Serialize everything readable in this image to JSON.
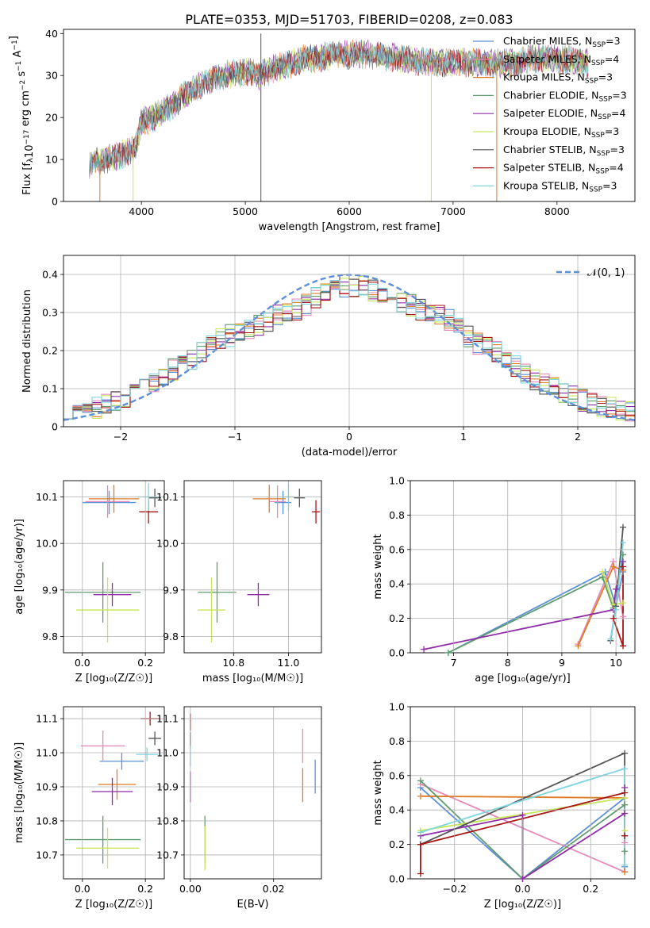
{
  "figure_title": "PLATE=0353, MJD=51703, FIBERID=0208, z=0.083",
  "colors": {
    "Chabrier MILES": "#5b8fd8",
    "Salpeter MILES": "#e68ab8",
    "Kroupa MILES": "#e07b28",
    "Chabrier ELODIE": "#5f9b6b",
    "Salpeter ELODIE": "#8e2ca8",
    "Kroupa ELODIE": "#c8e65a",
    "Chabrier STELIB": "#555555",
    "Salpeter STELIB": "#a81414",
    "Kroupa STELIB": "#7ed6e0",
    "normal_curve": "#5b8fd8",
    "grid": "#b0b0b0"
  },
  "chart_data": [
    {
      "id": "spectrum",
      "type": "line",
      "xlabel": "wavelength [Angstrom, rest frame]",
      "ylabel": "Flux [f_λ10^-17 erg cm^-2 s^-1 A^-1]",
      "xlim": [
        3250,
        8750
      ],
      "ylim": [
        0,
        41
      ],
      "xticks": [
        4000,
        5000,
        6000,
        7000,
        8000
      ],
      "yticks": [
        0,
        10,
        20,
        30,
        40
      ],
      "grid": false,
      "legend_position": "right",
      "legend": [
        {
          "name": "Chabrier MILES",
          "label": "Chabrier MILES, N",
          "sub": "SSP",
          "suffix": "=3"
        },
        {
          "name": "Salpeter MILES",
          "label": "Salpeter MILES, N",
          "sub": "SSP",
          "suffix": "=4"
        },
        {
          "name": "Kroupa MILES",
          "label": "Kroupa MILES, N",
          "sub": "SSP",
          "suffix": "=3"
        },
        {
          "name": "Chabrier ELODIE",
          "label": "Chabrier ELODIE, N",
          "sub": "SSP",
          "suffix": "=3"
        },
        {
          "name": "Salpeter ELODIE",
          "label": "Salpeter ELODIE, N",
          "sub": "SSP",
          "suffix": "=4"
        },
        {
          "name": "Kroupa ELODIE",
          "label": "Kroupa ELODIE, N",
          "sub": "SSP",
          "suffix": "=3"
        },
        {
          "name": "Chabrier STELIB",
          "label": "Chabrier STELIB, N",
          "sub": "SSP",
          "suffix": "=3"
        },
        {
          "name": "Salpeter STELIB",
          "label": "Salpeter STELIB, N",
          "sub": "SSP",
          "suffix": "=4"
        },
        {
          "name": "Kroupa STELIB",
          "label": "Kroupa STELIB, N",
          "sub": "SSP",
          "suffix": "=3"
        }
      ],
      "continuum": [
        [
          3500,
          9
        ],
        [
          3800,
          11
        ],
        [
          3950,
          13
        ],
        [
          4000,
          19
        ],
        [
          4200,
          21
        ],
        [
          4400,
          25
        ],
        [
          4600,
          28
        ],
        [
          4800,
          30
        ],
        [
          5000,
          31
        ],
        [
          5150,
          30
        ],
        [
          5300,
          32
        ],
        [
          5600,
          34
        ],
        [
          5900,
          35
        ],
        [
          6200,
          35
        ],
        [
          6500,
          34
        ],
        [
          6800,
          33
        ],
        [
          7000,
          33
        ],
        [
          7300,
          33
        ],
        [
          7600,
          33
        ],
        [
          7800,
          34
        ],
        [
          8000,
          34
        ],
        [
          8300,
          33
        ]
      ],
      "spikes": [
        {
          "x": 3600,
          "y": 0,
          "series": "Kroupa MILES"
        },
        {
          "x": 3920,
          "y": 0,
          "series": "Kroupa ELODIE"
        },
        {
          "x": 5150,
          "y": 0,
          "series": "Chabrier STELIB"
        },
        {
          "x": 5150,
          "y": 40,
          "series": "Chabrier STELIB"
        },
        {
          "x": 6790,
          "y": 0,
          "series": "Kroupa ELODIE"
        },
        {
          "x": 7420,
          "y": 0,
          "series": "Kroupa MILES"
        }
      ]
    },
    {
      "id": "residuals",
      "type": "line",
      "xlabel": "(data-model)/error",
      "ylabel": "Normed distribution",
      "xlim": [
        -2.5,
        2.5
      ],
      "ylim": [
        0,
        0.45
      ],
      "xticks": [
        -2,
        -1,
        0,
        1,
        2
      ],
      "yticks": [
        0.0,
        0.1,
        0.2,
        0.3,
        0.4
      ],
      "grid": true,
      "legend_position": "top-right",
      "legend_label": "𝒩(0, 1)",
      "bin_width": 0.1,
      "normal_sigma": 1.0,
      "normal_mean": 0.0,
      "histogram_base": [
        0.05,
        0.04,
        0.05,
        0.05,
        0.06,
        0.07,
        0.08,
        0.09,
        0.1,
        0.11,
        0.13,
        0.15,
        0.16,
        0.18,
        0.2,
        0.21,
        0.23,
        0.24,
        0.25,
        0.26,
        0.27,
        0.28,
        0.29,
        0.3,
        0.31,
        0.32,
        0.34,
        0.36,
        0.37,
        0.37,
        0.37,
        0.37,
        0.36,
        0.35,
        0.34,
        0.33,
        0.32,
        0.31,
        0.3,
        0.29,
        0.28,
        0.26,
        0.24,
        0.22,
        0.21,
        0.2,
        0.18,
        0.16,
        0.14,
        0.12,
        0.11,
        0.1,
        0.09,
        0.08,
        0.07,
        0.06,
        0.05,
        0.05,
        0.04,
        0.04
      ]
    },
    {
      "id": "age_vs_Z",
      "type": "scatter",
      "xlabel": "Z [log₁₀(Z/Z☉)]",
      "ylabel": "age  [log₁₀(age/yr)]",
      "xlim": [
        -0.06,
        0.26
      ],
      "ylim": [
        9.765,
        10.135
      ],
      "xticks": [
        0.0,
        0.2
      ],
      "xticklabels": [
        "0.0",
        "0.2"
      ],
      "yticks": [
        9.8,
        9.9,
        10.0,
        10.1
      ],
      "yticklabels": [
        "9.8",
        "9.9",
        "10.0",
        "10.1"
      ],
      "grid": true,
      "points": [
        {
          "series": "Chabrier MILES",
          "x": 0.085,
          "y": 10.088,
          "xerr": 0.085,
          "yerr": 0.025
        },
        {
          "series": "Salpeter MILES",
          "x": 0.08,
          "y": 10.09,
          "xerr": 0.07,
          "yerr": 0.035
        },
        {
          "series": "Kroupa MILES",
          "x": 0.1,
          "y": 10.096,
          "xerr": 0.08,
          "yerr": 0.03
        },
        {
          "series": "Chabrier ELODIE",
          "x": 0.065,
          "y": 9.895,
          "xerr": 0.12,
          "yerr": 0.065
        },
        {
          "series": "Salpeter ELODIE",
          "x": 0.095,
          "y": 9.89,
          "xerr": 0.06,
          "yerr": 0.025
        },
        {
          "series": "Kroupa ELODIE",
          "x": 0.08,
          "y": 9.857,
          "xerr": 0.1,
          "yerr": 0.07
        },
        {
          "series": "Chabrier STELIB",
          "x": 0.23,
          "y": 10.098,
          "xerr": 0.02,
          "yerr": 0.02
        },
        {
          "series": "Salpeter STELIB",
          "x": 0.21,
          "y": 10.068,
          "xerr": 0.03,
          "yerr": 0.025
        },
        {
          "series": "Kroupa STELIB",
          "x": 0.21,
          "y": 10.1,
          "xerr": 0.035,
          "yerr": 0.03
        }
      ]
    },
    {
      "id": "age_vs_mass",
      "type": "scatter",
      "xlabel": "mass [log₁₀(M/M☉)]",
      "ylabel": "",
      "xlim": [
        10.62,
        11.12
      ],
      "ylim": [
        9.765,
        10.135
      ],
      "xticks": [
        10.8,
        11.0
      ],
      "xticklabels": [
        "10.8",
        "11.0"
      ],
      "yticks": [
        9.8,
        9.9,
        10.0,
        10.1
      ],
      "yticklabels": [
        "9.8",
        "9.9",
        "10.0",
        "10.1"
      ],
      "grid": true,
      "points": [
        {
          "series": "Chabrier MILES",
          "x": 10.98,
          "y": 10.088,
          "xerr": 0.03,
          "yerr": 0.025
        },
        {
          "series": "Salpeter MILES",
          "x": 10.96,
          "y": 10.09,
          "xerr": 0.03,
          "yerr": 0.035
        },
        {
          "series": "Kroupa MILES",
          "x": 10.93,
          "y": 10.096,
          "xerr": 0.06,
          "yerr": 0.03
        },
        {
          "series": "Chabrier ELODIE",
          "x": 10.74,
          "y": 9.895,
          "xerr": 0.07,
          "yerr": 0.065
        },
        {
          "series": "Salpeter ELODIE",
          "x": 10.89,
          "y": 9.89,
          "xerr": 0.04,
          "yerr": 0.025
        },
        {
          "series": "Kroupa ELODIE",
          "x": 10.72,
          "y": 9.857,
          "xerr": 0.05,
          "yerr": 0.07
        },
        {
          "series": "Chabrier STELIB",
          "x": 11.04,
          "y": 10.098,
          "xerr": 0.02,
          "yerr": 0.02
        },
        {
          "series": "Salpeter STELIB",
          "x": 11.1,
          "y": 10.068,
          "xerr": 0.015,
          "yerr": 0.025
        },
        {
          "series": "Kroupa STELIB",
          "x": 11.0,
          "y": 10.1,
          "xerr": 0.02,
          "yerr": 0.03
        }
      ]
    },
    {
      "id": "weight_vs_age",
      "type": "line",
      "xlabel": "age  [log₁₀(age/yr)]",
      "ylabel": "mass weight",
      "xlim": [
        6.2,
        10.35
      ],
      "ylim": [
        0,
        1.0
      ],
      "xticks": [
        7,
        8,
        9,
        10
      ],
      "xticklabels": [
        "7",
        "8",
        "9",
        "10"
      ],
      "yticks": [
        0.0,
        0.2,
        0.4,
        0.6,
        0.8,
        1.0
      ],
      "yticklabels": [
        "0.0",
        "0.2",
        "0.4",
        "0.6",
        "0.8",
        "1.0"
      ],
      "grid": true,
      "series": [
        {
          "name": "Chabrier MILES",
          "x": [
            6.9,
            9.8,
            10.0,
            10.13
          ],
          "y": [
            0.0,
            0.47,
            0.27,
            0.47
          ]
        },
        {
          "name": "Salpeter MILES",
          "x": [
            9.3,
            9.95,
            10.13
          ],
          "y": [
            0.05,
            0.53,
            0.21
          ]
        },
        {
          "name": "Kroupa MILES",
          "x": [
            9.3,
            9.95,
            10.13
          ],
          "y": [
            0.04,
            0.5,
            0.48
          ]
        },
        {
          "name": "Chabrier ELODIE",
          "x": [
            6.9,
            9.75,
            9.95,
            10.13
          ],
          "y": [
            0.0,
            0.44,
            0.26,
            0.57
          ]
        },
        {
          "name": "Salpeter ELODIE",
          "x": [
            6.45,
            9.95,
            10.0,
            10.13
          ],
          "y": [
            0.02,
            0.25,
            0.37,
            0.53
          ]
        },
        {
          "name": "Kroupa ELODIE",
          "x": [
            9.75,
            9.95,
            10.13
          ],
          "y": [
            0.47,
            0.28,
            0.29
          ]
        },
        {
          "name": "Chabrier STELIB",
          "x": [
            9.9,
            10.0,
            10.13
          ],
          "y": [
            0.07,
            0.27,
            0.73
          ]
        },
        {
          "name": "Salpeter STELIB",
          "x": [
            9.95,
            10.13,
            10.13
          ],
          "y": [
            0.2,
            0.04,
            0.5
          ]
        },
        {
          "name": "Kroupa STELIB",
          "x": [
            9.9,
            10.0,
            10.13
          ],
          "y": [
            0.08,
            0.25,
            0.64
          ]
        }
      ]
    },
    {
      "id": "mass_vs_Z",
      "type": "scatter",
      "xlabel": "Z [log₁₀(Z/Z☉)]",
      "ylabel": "mass [log₁₀(M/M☉)]",
      "xlim": [
        -0.06,
        0.26
      ],
      "ylim": [
        10.63,
        11.135
      ],
      "xticks": [
        0.0,
        0.2
      ],
      "xticklabels": [
        "0.0",
        "0.2"
      ],
      "yticks": [
        10.7,
        10.8,
        10.9,
        11.0,
        11.1
      ],
      "yticklabels": [
        "10.7",
        "10.8",
        "10.9",
        "11.0",
        "11.1"
      ],
      "grid": true,
      "points": [
        {
          "series": "Chabrier MILES",
          "x": 0.125,
          "y": 10.975,
          "xerr": 0.07,
          "yerr": 0.025
        },
        {
          "series": "Salpeter MILES",
          "x": 0.065,
          "y": 11.02,
          "xerr": 0.07,
          "yerr": 0.045
        },
        {
          "series": "Kroupa MILES",
          "x": 0.11,
          "y": 10.907,
          "xerr": 0.06,
          "yerr": 0.045
        },
        {
          "series": "Chabrier ELODIE",
          "x": 0.065,
          "y": 10.745,
          "xerr": 0.12,
          "yerr": 0.07
        },
        {
          "series": "Salpeter ELODIE",
          "x": 0.095,
          "y": 10.886,
          "xerr": 0.065,
          "yerr": 0.04
        },
        {
          "series": "Kroupa ELODIE",
          "x": 0.08,
          "y": 10.72,
          "xerr": 0.1,
          "yerr": 0.06
        },
        {
          "series": "Chabrier STELIB",
          "x": 0.23,
          "y": 11.042,
          "xerr": 0.02,
          "yerr": 0.02
        },
        {
          "series": "Salpeter STELIB",
          "x": 0.215,
          "y": 11.1,
          "xerr": 0.03,
          "yerr": 0.02
        },
        {
          "series": "Kroupa STELIB",
          "x": 0.205,
          "y": 10.995,
          "xerr": 0.035,
          "yerr": 0.02
        }
      ]
    },
    {
      "id": "mass_vs_ebv",
      "type": "scatter",
      "xlabel": "E(B-V)",
      "ylabel": "",
      "xlim": [
        -0.0015,
        0.0315
      ],
      "ylim": [
        10.63,
        11.135
      ],
      "xticks": [
        0.0,
        0.02
      ],
      "xticklabels": [
        "0.00",
        "0.02"
      ],
      "yticks": [
        10.7,
        10.8,
        10.9,
        11.0,
        11.1
      ],
      "yticklabels": [
        "10.7",
        "10.8",
        "10.9",
        "11.0",
        "11.1"
      ],
      "grid": true,
      "points": [
        {
          "series": "Chabrier MILES",
          "x": 0.03,
          "y": 10.93,
          "xerr": 0,
          "yerr": 0.05
        },
        {
          "series": "Salpeter MILES",
          "x": 0.027,
          "y": 11.02,
          "xerr": 0,
          "yerr": 0.05
        },
        {
          "series": "Kroupa MILES",
          "x": 0.027,
          "y": 10.905,
          "xerr": 0,
          "yerr": 0.05
        },
        {
          "series": "Chabrier ELODIE",
          "x": 0.0035,
          "y": 10.745,
          "xerr": 0,
          "yerr": 0.07
        },
        {
          "series": "Salpeter ELODIE",
          "x": 0.0,
          "y": 10.9,
          "xerr": 0,
          "yerr": 0.045
        },
        {
          "series": "Kroupa ELODIE",
          "x": 0.0035,
          "y": 10.72,
          "xerr": 0,
          "yerr": 0.065
        },
        {
          "series": "Chabrier STELIB",
          "x": 0.0,
          "y": 11.04,
          "xerr": 0,
          "yerr": 0.02
        },
        {
          "series": "Salpeter STELIB",
          "x": 0.0,
          "y": 11.09,
          "xerr": 0,
          "yerr": 0.025
        },
        {
          "series": "Kroupa STELIB",
          "x": 0.0,
          "y": 10.99,
          "xerr": 0,
          "yerr": 0.03
        }
      ]
    },
    {
      "id": "weight_vs_Z",
      "type": "line",
      "xlabel": "Z [log₁₀(Z/Z☉)]",
      "ylabel": "mass weight",
      "xlim": [
        -0.33,
        0.33
      ],
      "ylim": [
        0,
        1.0
      ],
      "xticks": [
        -0.2,
        0.0,
        0.2
      ],
      "xticklabels": [
        "−0.2",
        "0.0",
        "0.2"
      ],
      "yticks": [
        0.0,
        0.2,
        0.4,
        0.6,
        0.8,
        1.0
      ],
      "yticklabels": [
        "0.0",
        "0.2",
        "0.4",
        "0.6",
        "0.8",
        "1.0"
      ],
      "grid": true,
      "series": [
        {
          "name": "Chabrier MILES",
          "x": [
            -0.3,
            0.0,
            0.3,
            0.3
          ],
          "y": [
            0.53,
            0.0,
            0.47,
            0.07
          ]
        },
        {
          "name": "Salpeter MILES",
          "x": [
            -0.3,
            0.3,
            0.3
          ],
          "y": [
            0.55,
            0.04,
            0.21
          ]
        },
        {
          "name": "Kroupa MILES",
          "x": [
            -0.3,
            0.3,
            0.3
          ],
          "y": [
            0.48,
            0.47,
            0.04
          ]
        },
        {
          "name": "Chabrier ELODIE",
          "x": [
            -0.3,
            0.0,
            0.3,
            0.3
          ],
          "y": [
            0.57,
            0.0,
            0.43,
            0.16
          ]
        },
        {
          "name": "Salpeter ELODIE",
          "x": [
            -0.3,
            0.0,
            0.0,
            0.3,
            0.3
          ],
          "y": [
            0.25,
            0.37,
            0.0,
            0.38,
            0.53
          ]
        },
        {
          "name": "Kroupa ELODIE",
          "x": [
            -0.3,
            0.3,
            0.3
          ],
          "y": [
            0.28,
            0.47,
            0.28
          ]
        },
        {
          "name": "Chabrier STELIB",
          "x": [
            -0.3,
            0.3,
            0.3
          ],
          "y": [
            0.2,
            0.73,
            0.25
          ]
        },
        {
          "name": "Salpeter STELIB",
          "x": [
            -0.3,
            -0.3,
            0.3,
            0.3
          ],
          "y": [
            0.03,
            0.2,
            0.5,
            0.25
          ]
        },
        {
          "name": "Kroupa STELIB",
          "x": [
            -0.3,
            0.3,
            0.3
          ],
          "y": [
            0.27,
            0.64,
            0.08
          ]
        }
      ]
    }
  ]
}
